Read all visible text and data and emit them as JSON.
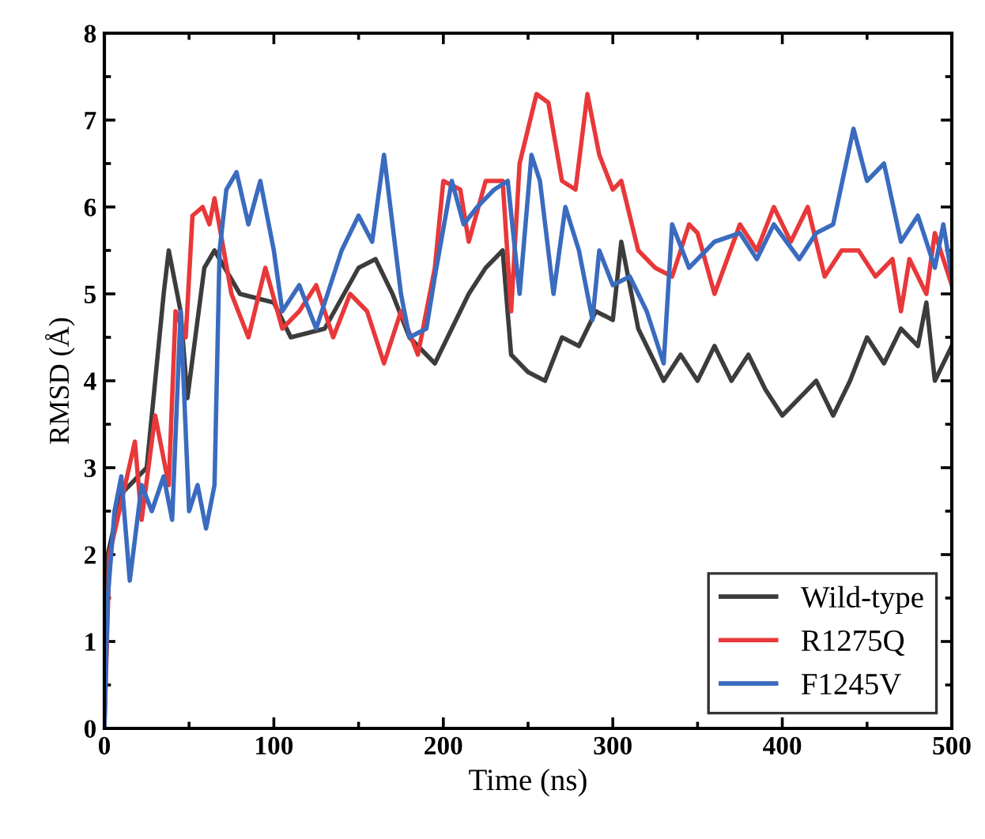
{
  "chart_data": {
    "type": "line",
    "xlabel": "Time (ns)",
    "ylabel": "RMSD (Å)",
    "xlim": [
      0,
      500
    ],
    "ylim": [
      0,
      8
    ],
    "xticks": [
      0,
      100,
      200,
      300,
      400,
      500
    ],
    "yticks": [
      0,
      1,
      2,
      3,
      4,
      5,
      6,
      7,
      8
    ],
    "grid": false,
    "legend": "bottom right",
    "marker": "none",
    "line_style": "solid",
    "series": [
      {
        "name": "Wild-type",
        "color": "#3c3c3c",
        "x": [
          0,
          2,
          10,
          25,
          30,
          35,
          38,
          45,
          49,
          59,
          65,
          80,
          100,
          110,
          130,
          150,
          160,
          170,
          180,
          195,
          205,
          215,
          225,
          235,
          240,
          250,
          260,
          270,
          280,
          290,
          300,
          305,
          315,
          330,
          340,
          350,
          360,
          370,
          380,
          390,
          400,
          410,
          420,
          430,
          440,
          450,
          460,
          470,
          480,
          485,
          490,
          500
        ],
        "values": [
          0,
          2,
          2.7,
          3,
          4,
          5,
          5.5,
          4.8,
          3.8,
          5.3,
          5.5,
          5.0,
          4.9,
          4.5,
          4.6,
          5.3,
          5.4,
          5.0,
          4.5,
          4.2,
          4.6,
          5.0,
          5.3,
          5.5,
          4.3,
          4.1,
          4.0,
          4.5,
          4.4,
          4.8,
          4.7,
          5.6,
          4.6,
          4.0,
          4.3,
          4.0,
          4.4,
          4.0,
          4.3,
          3.9,
          3.6,
          3.8,
          4.0,
          3.6,
          4.0,
          4.5,
          4.2,
          4.6,
          4.4,
          4.9,
          4.0,
          4.4
        ]
      },
      {
        "name": "R1275Q",
        "color": "#e8383a",
        "x": [
          0,
          3,
          10,
          18,
          22,
          30,
          38,
          42,
          48,
          52,
          58,
          62,
          65,
          75,
          85,
          95,
          105,
          115,
          125,
          135,
          145,
          155,
          165,
          175,
          185,
          195,
          200,
          210,
          215,
          225,
          235,
          240,
          245,
          255,
          262,
          270,
          278,
          285,
          292,
          300,
          305,
          315,
          325,
          335,
          345,
          350,
          360,
          375,
          385,
          395,
          405,
          415,
          425,
          435,
          445,
          455,
          465,
          470,
          475,
          485,
          490,
          500
        ],
        "values": [
          0,
          2,
          2.6,
          3.3,
          2.4,
          3.6,
          2.8,
          4.8,
          4.5,
          5.9,
          6.0,
          5.8,
          6.1,
          5.0,
          4.5,
          5.3,
          4.6,
          4.8,
          5.1,
          4.5,
          5.0,
          4.8,
          4.2,
          4.8,
          4.3,
          5.3,
          6.3,
          6.2,
          5.6,
          6.3,
          6.3,
          4.8,
          6.5,
          7.3,
          7.2,
          6.3,
          6.2,
          7.3,
          6.6,
          6.2,
          6.3,
          5.5,
          5.3,
          5.2,
          5.8,
          5.7,
          5.0,
          5.8,
          5.5,
          6.0,
          5.6,
          6.0,
          5.2,
          5.5,
          5.5,
          5.2,
          5.4,
          4.8,
          5.4,
          5.0,
          5.7,
          5.1
        ]
      },
      {
        "name": "F1245V",
        "color": "#3a6bbf",
        "x": [
          0,
          2,
          6,
          10,
          15,
          22,
          28,
          35,
          40,
          45,
          50,
          55,
          60,
          65,
          68,
          72,
          78,
          85,
          92,
          100,
          105,
          115,
          125,
          140,
          150,
          158,
          165,
          175,
          180,
          190,
          195,
          205,
          212,
          220,
          230,
          238,
          245,
          252,
          257,
          265,
          272,
          280,
          288,
          292,
          300,
          310,
          320,
          330,
          335,
          345,
          360,
          375,
          385,
          395,
          410,
          420,
          430,
          442,
          450,
          460,
          470,
          480,
          490,
          495,
          500
        ],
        "values": [
          0,
          1.5,
          2.5,
          2.9,
          1.7,
          2.8,
          2.5,
          2.9,
          2.4,
          4.8,
          2.5,
          2.8,
          2.3,
          2.8,
          5.5,
          6.2,
          6.4,
          5.8,
          6.3,
          5.5,
          4.8,
          5.1,
          4.6,
          5.5,
          5.9,
          5.6,
          6.6,
          5.0,
          4.5,
          4.6,
          5.2,
          6.3,
          5.8,
          6.0,
          6.2,
          6.3,
          5.0,
          6.6,
          6.3,
          5.0,
          6.0,
          5.5,
          4.7,
          5.5,
          5.1,
          5.2,
          4.8,
          4.2,
          5.8,
          5.3,
          5.6,
          5.7,
          5.4,
          5.8,
          5.4,
          5.7,
          5.8,
          6.9,
          6.3,
          6.5,
          5.6,
          5.9,
          5.3,
          5.8,
          5.2
        ]
      }
    ]
  }
}
